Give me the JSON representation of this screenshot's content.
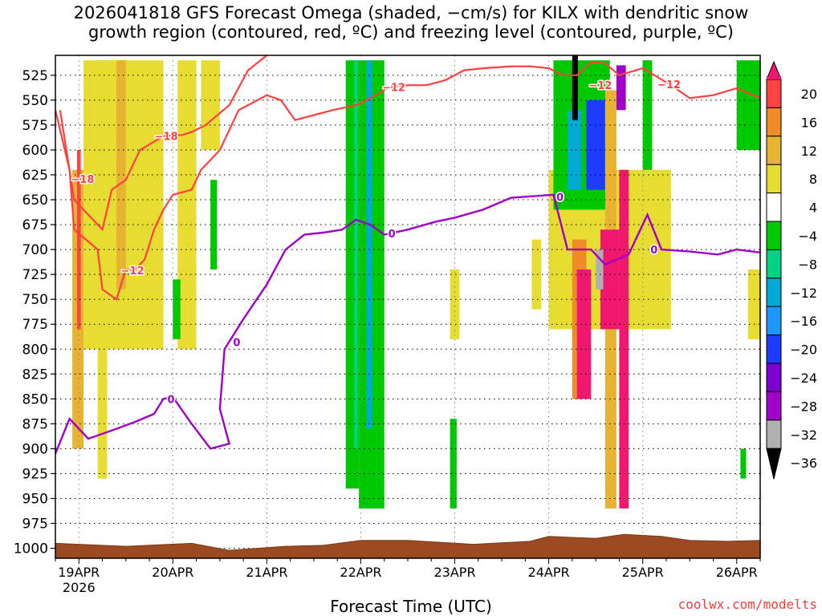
{
  "title": {
    "line1": "2026041818 GFS Forecast Omega (shaded, −cm/s) for KILX with dendritic snow",
    "line2": "growth region (contoured, red, ºC) and freezing level (contoured, purple, ºC)"
  },
  "credit": "coolwx.com/modelts",
  "chart_data": {
    "type": "heatmap",
    "title": "2026041818 GFS Forecast Omega (shaded, −cm/s) for KILX with dendritic snow growth region (contoured, red, ºC) and freezing level (contoured, purple, ºC)",
    "xlabel": "Forecast Time (UTC)",
    "ylabel": "",
    "x_range_days": [
      18.75,
      26.25
    ],
    "y_range_hpa": [
      1010,
      505
    ],
    "y_ticks": [
      525,
      550,
      575,
      600,
      625,
      650,
      675,
      700,
      725,
      750,
      775,
      800,
      825,
      850,
      875,
      900,
      925,
      950,
      975,
      1000
    ],
    "x_ticks": [
      {
        "day": 19,
        "label": "19APR",
        "sub": "2026"
      },
      {
        "day": 20,
        "label": "20APR",
        "sub": ""
      },
      {
        "day": 21,
        "label": "21APR",
        "sub": ""
      },
      {
        "day": 22,
        "label": "22APR",
        "sub": ""
      },
      {
        "day": 23,
        "label": "23APR",
        "sub": ""
      },
      {
        "day": 24,
        "label": "24APR",
        "sub": ""
      },
      {
        "day": 25,
        "label": "25APR",
        "sub": ""
      },
      {
        "day": 26,
        "label": "26APR",
        "sub": ""
      }
    ],
    "grid": true,
    "colorbar": {
      "labels": [
        "20",
        "16",
        "12",
        "8",
        "4",
        "−4",
        "−8",
        "−12",
        "−16",
        "−20",
        "−24",
        "−28",
        "−32",
        "−36"
      ],
      "bins": [
        {
          "color": "#f0186e"
        },
        {
          "color": "#ff4242"
        },
        {
          "color": "#f08c28"
        },
        {
          "color": "#e6b432"
        },
        {
          "color": "#e6dc32"
        },
        {
          "color": "#ffffff"
        },
        {
          "color": "#00c800"
        },
        {
          "color": "#00d282"
        },
        {
          "color": "#00aad2"
        },
        {
          "color": "#1e96ff"
        },
        {
          "color": "#1e3cff"
        },
        {
          "color": "#7d00d2"
        },
        {
          "color": "#a000c8"
        },
        {
          "color": "#b0b0b0"
        },
        {
          "color": "#000000"
        }
      ]
    },
    "omega_regions": [
      {
        "value": 6,
        "t": [
          19.05,
          19.9
        ],
        "p": [
          510,
          800
        ]
      },
      {
        "value": 6,
        "t": [
          19.2,
          19.3
        ],
        "p": [
          510,
          930
        ]
      },
      {
        "value": 6,
        "t": [
          20.05,
          20.25
        ],
        "p": [
          510,
          800
        ]
      },
      {
        "value": 6,
        "t": [
          20.3,
          20.5
        ],
        "p": [
          510,
          600
        ]
      },
      {
        "value": 10,
        "t": [
          18.93,
          19.05
        ],
        "p": [
          620,
          900
        ]
      },
      {
        "value": 10,
        "t": [
          19.4,
          19.5
        ],
        "p": [
          510,
          740
        ]
      },
      {
        "value": 18,
        "t": [
          18.98,
          19.02
        ],
        "p": [
          600,
          780
        ]
      },
      {
        "value": -6,
        "t": [
          20.4,
          20.47
        ],
        "p": [
          630,
          720
        ]
      },
      {
        "value": -6,
        "t": [
          20.0,
          20.08
        ],
        "p": [
          730,
          790
        ]
      },
      {
        "value": -6,
        "t": [
          21.84,
          21.98
        ],
        "p": [
          510,
          940
        ]
      },
      {
        "value": -6,
        "t": [
          21.98,
          22.25
        ],
        "p": [
          510,
          960
        ]
      },
      {
        "value": -10,
        "t": [
          21.93,
          21.97
        ],
        "p": [
          510,
          900
        ]
      },
      {
        "value": -14,
        "t": [
          22.06,
          22.12
        ],
        "p": [
          510,
          880
        ]
      },
      {
        "value": 6,
        "t": [
          22.95,
          23.05
        ],
        "p": [
          720,
          790
        ]
      },
      {
        "value": -6,
        "t": [
          22.95,
          23.02
        ],
        "p": [
          870,
          960
        ]
      },
      {
        "value": 6,
        "t": [
          23.82,
          23.92
        ],
        "p": [
          690,
          760
        ]
      },
      {
        "value": 6,
        "t": [
          24.0,
          25.3
        ],
        "p": [
          620,
          780
        ]
      },
      {
        "value": -6,
        "t": [
          24.05,
          24.65
        ],
        "p": [
          510,
          660
        ]
      },
      {
        "value": -14,
        "t": [
          24.2,
          24.35
        ],
        "p": [
          560,
          640
        ]
      },
      {
        "value": -22,
        "t": [
          24.4,
          24.6
        ],
        "p": [
          550,
          640
        ]
      },
      {
        "value": -6,
        "t": [
          25.0,
          25.1
        ],
        "p": [
          510,
          620
        ]
      },
      {
        "value": 10,
        "t": [
          24.6,
          24.72
        ],
        "p": [
          540,
          960
        ]
      },
      {
        "value": 14,
        "t": [
          24.25,
          24.4
        ],
        "p": [
          690,
          850
        ]
      },
      {
        "value": 22,
        "t": [
          24.3,
          24.45
        ],
        "p": [
          720,
          850
        ]
      },
      {
        "value": 22,
        "t": [
          24.55,
          24.75
        ],
        "p": [
          680,
          780
        ]
      },
      {
        "value": 22,
        "t": [
          24.75,
          24.85
        ],
        "p": [
          620,
          960
        ]
      },
      {
        "value": -34,
        "t": [
          24.5,
          24.58
        ],
        "p": [
          700,
          740
        ]
      },
      {
        "value": -30,
        "t": [
          24.72,
          24.82
        ],
        "p": [
          515,
          560
        ]
      },
      {
        "value": -38,
        "t": [
          24.25,
          24.31
        ],
        "p": [
          505,
          570
        ]
      },
      {
        "value": -6,
        "t": [
          26.0,
          26.25
        ],
        "p": [
          510,
          600
        ]
      },
      {
        "value": -6,
        "t": [
          26.04,
          26.1
        ],
        "p": [
          900,
          930
        ]
      },
      {
        "value": 6,
        "t": [
          26.12,
          26.25
        ],
        "p": [
          720,
          790
        ]
      }
    ],
    "dgz_minus12": [
      [
        18.75,
        560
      ],
      [
        18.9,
        620
      ],
      [
        18.95,
        680
      ],
      [
        19.2,
        700
      ],
      [
        19.25,
        740
      ],
      [
        19.4,
        750
      ],
      [
        19.5,
        720
      ],
      [
        19.6,
        720
      ],
      [
        19.7,
        710
      ],
      [
        19.8,
        680
      ],
      [
        19.9,
        660
      ],
      [
        20.0,
        645
      ],
      [
        20.2,
        640
      ],
      [
        20.3,
        620
      ],
      [
        20.5,
        600
      ],
      [
        20.7,
        560
      ],
      [
        20.9,
        550
      ],
      [
        21.0,
        545
      ],
      [
        21.15,
        550
      ],
      [
        21.3,
        570
      ],
      [
        21.5,
        565
      ],
      [
        21.7,
        560
      ],
      [
        21.95,
        555
      ],
      [
        22.1,
        548
      ],
      [
        22.3,
        537
      ],
      [
        22.5,
        535
      ],
      [
        22.7,
        535
      ],
      [
        22.9,
        530
      ],
      [
        23.1,
        520
      ],
      [
        23.3,
        518
      ],
      [
        23.6,
        516
      ],
      [
        23.8,
        516
      ],
      [
        24.0,
        518
      ],
      [
        24.15,
        525
      ],
      [
        24.3,
        525
      ],
      [
        24.45,
        512
      ],
      [
        24.6,
        513
      ],
      [
        24.75,
        525
      ],
      [
        25.0,
        518
      ],
      [
        25.3,
        535
      ],
      [
        25.5,
        548
      ],
      [
        25.75,
        545
      ],
      [
        26.0,
        538
      ],
      [
        26.25,
        548
      ]
    ],
    "dgz_minus18": [
      [
        18.8,
        560
      ],
      [
        18.95,
        650
      ],
      [
        19.1,
        665
      ],
      [
        19.25,
        680
      ],
      [
        19.35,
        640
      ],
      [
        19.5,
        630
      ],
      [
        19.65,
        600
      ],
      [
        19.9,
        586
      ],
      [
        20.1,
        585
      ],
      [
        20.2,
        582
      ],
      [
        20.35,
        575
      ],
      [
        20.6,
        555
      ],
      [
        20.8,
        520
      ],
      [
        21.0,
        505
      ]
    ],
    "freezing_level": [
      [
        18.75,
        905
      ],
      [
        18.9,
        870
      ],
      [
        19.1,
        890
      ],
      [
        19.4,
        880
      ],
      [
        19.6,
        873
      ],
      [
        19.8,
        865
      ],
      [
        19.9,
        850
      ],
      [
        20.0,
        848
      ],
      [
        20.2,
        875
      ],
      [
        20.4,
        900
      ],
      [
        20.6,
        895
      ],
      [
        20.5,
        860
      ],
      [
        20.55,
        800
      ],
      [
        20.75,
        770
      ],
      [
        21.0,
        735
      ],
      [
        21.2,
        700
      ],
      [
        21.4,
        685
      ],
      [
        21.6,
        683
      ],
      [
        21.8,
        680
      ],
      [
        21.95,
        670
      ],
      [
        22.1,
        675
      ],
      [
        22.25,
        685
      ],
      [
        22.5,
        680
      ],
      [
        22.8,
        672
      ],
      [
        23.0,
        668
      ],
      [
        23.3,
        660
      ],
      [
        23.6,
        648
      ],
      [
        23.9,
        646
      ],
      [
        24.05,
        645
      ],
      [
        24.2,
        700
      ],
      [
        24.45,
        700
      ],
      [
        24.6,
        715
      ],
      [
        24.85,
        705
      ],
      [
        25.05,
        665
      ],
      [
        25.2,
        700
      ],
      [
        25.5,
        702
      ],
      [
        25.8,
        705
      ],
      [
        26.0,
        700
      ],
      [
        26.25,
        703
      ]
    ],
    "surface_pressure": [
      [
        18.75,
        995
      ],
      [
        19.5,
        998
      ],
      [
        20.2,
        995
      ],
      [
        20.6,
        1002
      ],
      [
        21.2,
        998
      ],
      [
        21.6,
        997
      ],
      [
        22.0,
        992
      ],
      [
        22.5,
        992
      ],
      [
        23.2,
        996
      ],
      [
        23.8,
        993
      ],
      [
        24.0,
        988
      ],
      [
        24.5,
        990
      ],
      [
        24.8,
        986
      ],
      [
        25.2,
        988
      ],
      [
        25.5,
        992
      ],
      [
        25.9,
        993
      ],
      [
        26.25,
        992
      ]
    ],
    "contour_labels": [
      {
        "text": "−18",
        "t": 19.04,
        "p": 629
      },
      {
        "text": "−18",
        "t": 19.93,
        "p": 586
      },
      {
        "text": "−12",
        "t": 19.57,
        "p": 721
      },
      {
        "text": "−12",
        "t": 22.35,
        "p": 537
      },
      {
        "text": "−12",
        "t": 24.55,
        "p": 535
      },
      {
        "text": "−12",
        "t": 25.28,
        "p": 534
      },
      {
        "text": "0",
        "t": 19.98,
        "p": 850
      },
      {
        "text": "0",
        "t": 20.68,
        "p": 793
      },
      {
        "text": "0",
        "t": 22.33,
        "p": 684
      },
      {
        "text": "0",
        "t": 24.12,
        "p": 647
      },
      {
        "text": "0",
        "t": 25.12,
        "p": 700
      }
    ]
  }
}
